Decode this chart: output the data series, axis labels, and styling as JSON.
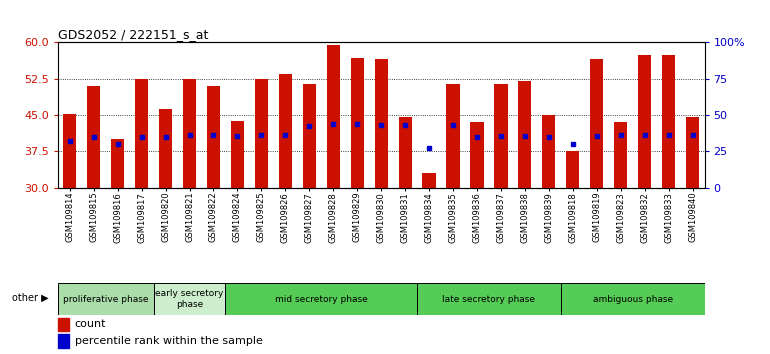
{
  "title": "GDS2052 / 222151_s_at",
  "samples": [
    "GSM109814",
    "GSM109815",
    "GSM109816",
    "GSM109817",
    "GSM109820",
    "GSM109821",
    "GSM109822",
    "GSM109824",
    "GSM109825",
    "GSM109826",
    "GSM109827",
    "GSM109828",
    "GSM109829",
    "GSM109830",
    "GSM109831",
    "GSM109834",
    "GSM109835",
    "GSM109836",
    "GSM109837",
    "GSM109838",
    "GSM109839",
    "GSM109818",
    "GSM109819",
    "GSM109823",
    "GSM109832",
    "GSM109833",
    "GSM109840"
  ],
  "count_values": [
    45.2,
    51.0,
    40.0,
    52.5,
    46.2,
    52.5,
    51.0,
    43.8,
    52.5,
    53.5,
    51.5,
    59.5,
    56.8,
    56.5,
    44.5,
    33.0,
    51.5,
    43.5,
    51.5,
    52.0,
    45.0,
    37.5,
    56.5,
    43.5,
    57.5,
    57.5,
    44.5
  ],
  "percentile_values": [
    32.0,
    35.0,
    30.0,
    35.0,
    35.0,
    36.0,
    36.5,
    35.5,
    36.0,
    36.0,
    42.5,
    43.5,
    43.5,
    43.0,
    43.0,
    27.5,
    43.0,
    35.0,
    35.5,
    35.5,
    35.0,
    30.0,
    35.5,
    36.0,
    36.0,
    36.5,
    36.5
  ],
  "ylim_left": [
    30,
    60
  ],
  "ylim_right": [
    0,
    100
  ],
  "yticks_left": [
    30,
    37.5,
    45,
    52.5,
    60
  ],
  "yticks_right": [
    0,
    25,
    50,
    75,
    100
  ],
  "bar_color": "#cc1100",
  "dot_color": "#0000cc",
  "phase_defs": [
    {
      "label": "proliferative phase",
      "start": 0,
      "end": 4,
      "color": "#aaddaa"
    },
    {
      "label": "early secretory\nphase",
      "start": 4,
      "end": 7,
      "color": "#cceecc"
    },
    {
      "label": "mid secretory phase",
      "start": 7,
      "end": 15,
      "color": "#55cc55"
    },
    {
      "label": "late secretory phase",
      "start": 15,
      "end": 21,
      "color": "#55cc55"
    },
    {
      "label": "ambiguous phase",
      "start": 21,
      "end": 27,
      "color": "#55cc55"
    }
  ],
  "legend_count_label": "count",
  "legend_pct_label": "percentile rank within the sample",
  "bar_width": 0.55,
  "fig_width": 7.7,
  "fig_height": 3.54,
  "dpi": 100
}
